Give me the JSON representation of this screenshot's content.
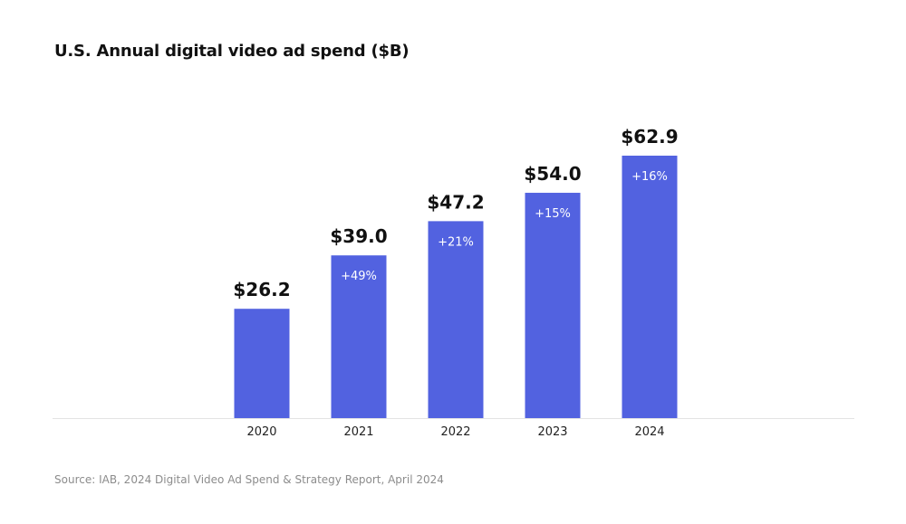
{
  "chart_data": {
    "type": "bar",
    "title": "U.S. Annual digital video ad spend ($B)",
    "categories": [
      "2020",
      "2021",
      "2022",
      "2023",
      "2024"
    ],
    "values": [
      26.2,
      39.0,
      47.2,
      54.0,
      62.9
    ],
    "value_labels": [
      "$26.2",
      "$39.0",
      "$47.2",
      "$54.0",
      "$62.9"
    ],
    "growth_labels": [
      "",
      "+49%",
      "+21%",
      "+15%",
      "+16%"
    ],
    "xlabel": "",
    "ylabel": "",
    "ylim": [
      0,
      62.9
    ],
    "grid": false,
    "legend": "none",
    "bar_color": "#5262E0",
    "source": "Source: IAB, 2024 Digital Video Ad Spend & Strategy Report, April 2024"
  }
}
